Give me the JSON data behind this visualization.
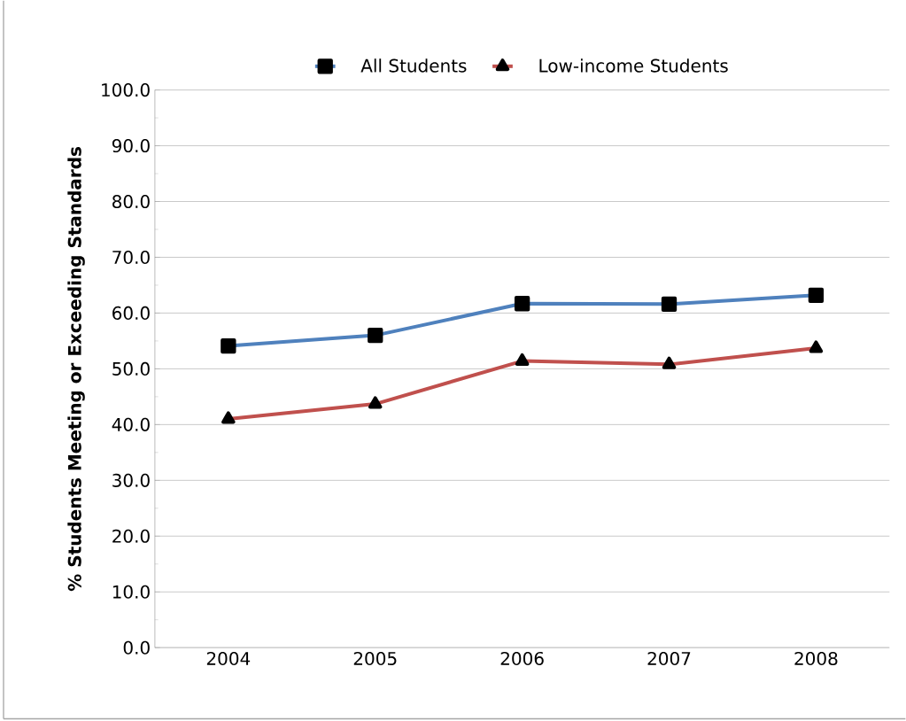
{
  "chart_data": {
    "type": "line",
    "ylabel": "% Students Meeting or Exceeding Standards",
    "categories": [
      "2004",
      "2005",
      "2006",
      "2007",
      "2008"
    ],
    "series": [
      {
        "name": "All Students",
        "color": "#4f81bd",
        "marker": "square",
        "values": [
          54.1,
          56.0,
          61.7,
          61.6,
          63.2
        ]
      },
      {
        "name": "Low-income Students",
        "color": "#c0504d",
        "marker": "triangle",
        "values": [
          41.0,
          43.7,
          51.4,
          50.8,
          53.7
        ]
      }
    ],
    "ylim": [
      0,
      100
    ],
    "yticks": [
      {
        "value": 0,
        "label": "0.0"
      },
      {
        "value": 10,
        "label": "10.0"
      },
      {
        "value": 20,
        "label": "20.0"
      },
      {
        "value": 30,
        "label": "30.0"
      },
      {
        "value": 40,
        "label": "40.0"
      },
      {
        "value": 50,
        "label": "50.0"
      },
      {
        "value": 60,
        "label": "60.0"
      },
      {
        "value": 70,
        "label": "70.0"
      },
      {
        "value": 80,
        "label": "80.0"
      },
      {
        "value": 90,
        "label": "90.0"
      },
      {
        "value": 100,
        "label": "100.0"
      }
    ],
    "grid": "y",
    "legend": "top",
    "line_style": "solid"
  }
}
